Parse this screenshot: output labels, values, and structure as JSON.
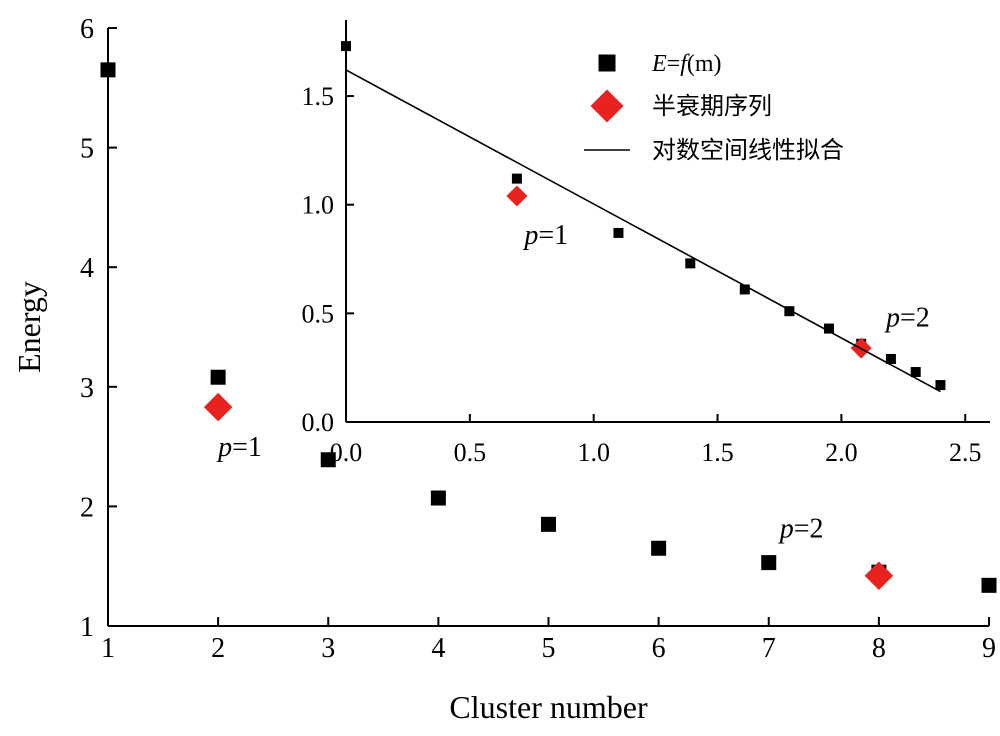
{
  "chart_data": [
    {
      "id": "main",
      "type": "scatter",
      "xlabel": "Cluster number",
      "ylabel": "Energy",
      "xlim": [
        1,
        9
      ],
      "ylim": [
        1,
        6
      ],
      "xticks": [
        "1",
        "2",
        "3",
        "4",
        "5",
        "6",
        "7",
        "8",
        "9"
      ],
      "yticks": [
        "1",
        "2",
        "3",
        "4",
        "5",
        "6"
      ],
      "grid": false,
      "series": [
        {
          "marker": "square",
          "color": "#000000",
          "points": [
            {
              "x": 1,
              "y": 5.65
            },
            {
              "x": 2,
              "y": 3.08
            },
            {
              "x": 3,
              "y": 2.39
            },
            {
              "x": 4,
              "y": 2.07
            },
            {
              "x": 5,
              "y": 1.85
            },
            {
              "x": 6,
              "y": 1.65
            },
            {
              "x": 7,
              "y": 1.53
            },
            {
              "x": 8,
              "y": 1.45
            },
            {
              "x": 9,
              "y": 1.34
            }
          ]
        },
        {
          "marker": "diamond",
          "color": "#e8231f",
          "points": [
            {
              "x": 2,
              "y": 2.83
            },
            {
              "x": 8,
              "y": 1.42
            }
          ]
        }
      ],
      "annotations": [
        {
          "prefix": "p",
          "suffix": "=1",
          "x": 2.0,
          "y": 2.42
        },
        {
          "prefix": "p",
          "suffix": "=2",
          "x": 7.1,
          "y": 1.74
        }
      ]
    },
    {
      "id": "inset",
      "type": "scatter",
      "xlim": [
        0,
        2.6
      ],
      "ylim": [
        0,
        1.85
      ],
      "xticks": [
        "0.0",
        "0.5",
        "1.0",
        "1.5",
        "2.0",
        "2.5"
      ],
      "yticks": [
        "0.0",
        "0.5",
        "1.0",
        "1.5"
      ],
      "grid": false,
      "legend_position": "top-right",
      "legend": [
        {
          "marker": "square",
          "prefix": "E",
          "eq": "=",
          "func": "f",
          "arg": "(m)"
        },
        {
          "marker": "diamond",
          "label": "半衰期序列"
        },
        {
          "marker": "line",
          "label": "对数空间线性拟合"
        }
      ],
      "series": [
        {
          "marker": "square",
          "color": "#000000",
          "points": [
            {
              "x": 0.0,
              "y": 1.73
            },
            {
              "x": 0.69,
              "y": 1.12
            },
            {
              "x": 1.1,
              "y": 0.87
            },
            {
              "x": 1.39,
              "y": 0.73
            },
            {
              "x": 1.61,
              "y": 0.61
            },
            {
              "x": 1.79,
              "y": 0.51
            },
            {
              "x": 1.95,
              "y": 0.43
            },
            {
              "x": 2.08,
              "y": 0.36
            },
            {
              "x": 2.2,
              "y": 0.29
            },
            {
              "x": 2.3,
              "y": 0.23
            },
            {
              "x": 2.4,
              "y": 0.17
            }
          ]
        },
        {
          "marker": "diamond",
          "color": "#e8231f",
          "points": [
            {
              "x": 0.69,
              "y": 1.04
            },
            {
              "x": 2.08,
              "y": 0.34
            }
          ]
        },
        {
          "marker": "line",
          "color": "#000000",
          "points": [
            {
              "x": 0.0,
              "y": 1.62
            },
            {
              "x": 2.4,
              "y": 0.14
            }
          ]
        }
      ],
      "annotations": [
        {
          "prefix": "p",
          "suffix": "=1",
          "x": 0.72,
          "y": 0.82
        },
        {
          "prefix": "p",
          "suffix": "=2",
          "x": 2.18,
          "y": 0.44
        }
      ]
    }
  ]
}
